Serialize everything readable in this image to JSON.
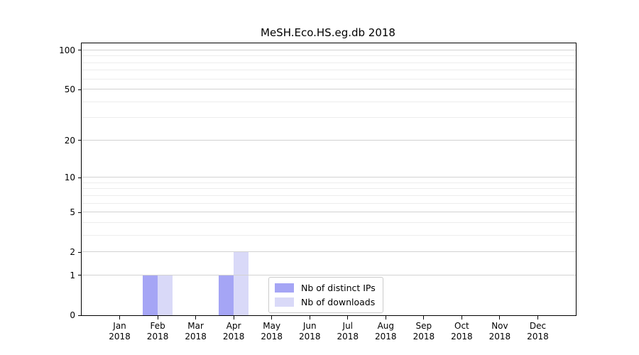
{
  "chart_data": {
    "type": "bar",
    "title": "MeSH.Eco.HS.eg.db 2018",
    "categories": [
      "Jan 2018",
      "Feb 2018",
      "Mar 2018",
      "Apr 2018",
      "May 2018",
      "Jun 2018",
      "Jul 2018",
      "Aug 2018",
      "Sep 2018",
      "Oct 2018",
      "Nov 2018",
      "Dec 2018"
    ],
    "series": [
      {
        "name": "Nb of distinct IPs",
        "color": "#a5a5f5",
        "values": [
          0,
          1,
          0,
          1,
          0,
          0,
          0,
          0,
          0,
          0,
          0,
          0
        ]
      },
      {
        "name": "Nb of downloads",
        "color": "#d9d9f8",
        "values": [
          0,
          1,
          0,
          2,
          0,
          0,
          0,
          0,
          0,
          0,
          0,
          0
        ]
      }
    ],
    "xlabel": "",
    "ylabel": "",
    "yscale": "log1p",
    "ylim": [
      0,
      113
    ],
    "yticks": [
      0,
      1,
      2,
      5,
      10,
      20,
      50,
      100
    ],
    "grid": "horizontal major + minor, drawn over bars",
    "legend_position": "inside lower-center"
  }
}
